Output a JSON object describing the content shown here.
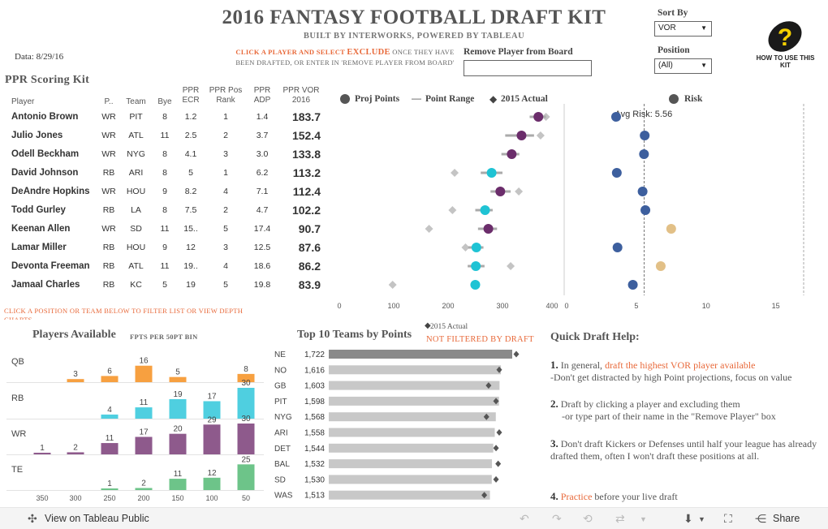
{
  "header": {
    "title": "2016 FANTASY FOOTBALL DRAFT KIT",
    "subtitle": "BUILT BY INTERWORKS, POWERED BY TABLEAU",
    "data_date": "Data:  8/29/16",
    "instruction_part1": "CLICK A PLAYER AND SELECT ",
    "instruction_exclude": "EXCLUDE",
    "instruction_part2": " ONCE THEY HAVE BEEN DRAFTED, OR ENTER IN 'REMOVE PLAYER FROM BOARD'",
    "remove_label": "Remove Player from Board",
    "remove_value": "",
    "sort_label": "Sort By",
    "sort_value": "VOR",
    "position_label": "Position",
    "position_value": "(All)",
    "help_label": "HOW TO USE THIS KIT"
  },
  "ppr": {
    "title": "PPR Scoring Kit",
    "columns": [
      "Player",
      "P..",
      "Team",
      "Bye",
      "PPR ECR",
      "PPR Pos Rank",
      "PPR ADP",
      "PPR VOR 2016"
    ],
    "rows": [
      {
        "player": "Antonio Brown",
        "pos": "WR",
        "team": "PIT",
        "bye": "8",
        "ecr": "1.2",
        "posrank": "1",
        "adp": "1.4",
        "vor": "183.7"
      },
      {
        "player": "Julio Jones",
        "pos": "WR",
        "team": "ATL",
        "bye": "11",
        "ecr": "2.5",
        "posrank": "2",
        "adp": "3.7",
        "vor": "152.4"
      },
      {
        "player": "Odell Beckham",
        "pos": "WR",
        "team": "NYG",
        "bye": "8",
        "ecr": "4.1",
        "posrank": "3",
        "adp": "3.0",
        "vor": "133.8"
      },
      {
        "player": "David Johnson",
        "pos": "RB",
        "team": "ARI",
        "bye": "8",
        "ecr": "5",
        "posrank": "1",
        "adp": "6.2",
        "vor": "113.2"
      },
      {
        "player": "DeAndre Hopkins",
        "pos": "WR",
        "team": "HOU",
        "bye": "9",
        "ecr": "8.2",
        "posrank": "4",
        "adp": "7.1",
        "vor": "112.4"
      },
      {
        "player": "Todd Gurley",
        "pos": "RB",
        "team": "LA",
        "bye": "8",
        "ecr": "7.5",
        "posrank": "2",
        "adp": "4.7",
        "vor": "102.2"
      },
      {
        "player": "Keenan Allen",
        "pos": "WR",
        "team": "SD",
        "bye": "11",
        "ecr": "15..",
        "posrank": "5",
        "adp": "17.4",
        "vor": "90.7"
      },
      {
        "player": "Lamar Miller",
        "pos": "RB",
        "team": "HOU",
        "bye": "9",
        "ecr": "12",
        "posrank": "3",
        "adp": "12.5",
        "vor": "87.6"
      },
      {
        "player": "Devonta Freeman",
        "pos": "RB",
        "team": "ATL",
        "bye": "11",
        "ecr": "19..",
        "posrank": "4",
        "adp": "18.6",
        "vor": "86.2"
      },
      {
        "player": "Jamaal Charles",
        "pos": "RB",
        "team": "KC",
        "bye": "5",
        "ecr": "19",
        "posrank": "5",
        "adp": "19.8",
        "vor": "83.9"
      }
    ]
  },
  "legend": {
    "proj": "Proj Points",
    "range": "Point Range",
    "actual": "2015 Actual",
    "risk": "Risk",
    "avg_risk": "Avg Risk: 5.56"
  },
  "chart_data": [
    {
      "type": "scatter",
      "name": "Projected Points",
      "xlim": [
        0,
        400
      ],
      "ticks": [
        "0",
        "100",
        "200",
        "300",
        "400"
      ],
      "categories": [
        "Antonio Brown",
        "Julio Jones",
        "Odell Beckham",
        "David Johnson",
        "DeAndre Hopkins",
        "Todd Gurley",
        "Keenan Allen",
        "Lamar Miller",
        "Devonta Freeman",
        "Jamaal Charles"
      ],
      "proj": [
        366,
        335,
        317,
        280,
        296,
        268,
        274,
        252,
        251,
        250
      ],
      "range_low": [
        350,
        305,
        298,
        260,
        278,
        250,
        255,
        237,
        236,
        241
      ],
      "range_high": [
        380,
        358,
        331,
        300,
        315,
        282,
        290,
        265,
        267,
        257
      ],
      "actual_2015": [
        380,
        370,
        0,
        212,
        330,
        208,
        165,
        232,
        315,
        98
      ],
      "pos": [
        "WR",
        "WR",
        "WR",
        "RB",
        "WR",
        "RB",
        "WR",
        "RB",
        "RB",
        "RB"
      ]
    },
    {
      "type": "scatter",
      "name": "Risk",
      "xlim": [
        0,
        17
      ],
      "ticks": [
        "0",
        "5",
        "10",
        "15"
      ],
      "avg": 5.56,
      "values": [
        3.55,
        5.6,
        5.55,
        3.6,
        5.45,
        5.65,
        7.5,
        3.65,
        6.75,
        4.75
      ],
      "colors": [
        "#3d5f9e",
        "#3d5f9e",
        "#3d5f9e",
        "#3d5f9e",
        "#3d5f9e",
        "#3d5f9e",
        "#e2c087",
        "#3d5f9e",
        "#e2c087",
        "#3d5f9e"
      ]
    },
    {
      "type": "bar",
      "name": "Players Available",
      "title": "Players Available",
      "subtitle": "FPTS PER 50PT BIN",
      "categories": [
        "350",
        "300",
        "250",
        "200",
        "150",
        "100",
        "50"
      ],
      "series": [
        {
          "name": "QB",
          "color": "#f7a040",
          "values": [
            0,
            3,
            6,
            16,
            5,
            0,
            8
          ]
        },
        {
          "name": "RB",
          "color": "#4fcfe0",
          "values": [
            0,
            0,
            4,
            11,
            19,
            17,
            30
          ]
        },
        {
          "name": "WR",
          "color": "#8e5a8c",
          "values": [
            1,
            2,
            11,
            17,
            20,
            29,
            30
          ]
        },
        {
          "name": "TE",
          "color": "#6dc489",
          "values": [
            0,
            0,
            1,
            2,
            11,
            12,
            25
          ]
        }
      ]
    },
    {
      "type": "bar",
      "name": "Top 10 Teams by Points",
      "title": "Top 10 Teams by Points",
      "legend": "2015 Actual",
      "note": "NOT FILTERED BY DRAFT",
      "categories": [
        "NE",
        "NO",
        "GB",
        "PIT",
        "NYG",
        "ARI",
        "DET",
        "BAL",
        "SD",
        "WAS"
      ],
      "value_labels": [
        "1,722",
        "1,616",
        "1,603",
        "1,598",
        "1,568",
        "1,558",
        "1,544",
        "1,532",
        "1,530",
        "1,513"
      ],
      "values": [
        1722,
        1616,
        1603,
        1598,
        1568,
        1558,
        1544,
        1532,
        1530,
        1513
      ],
      "actual_2015": [
        1760,
        1600,
        1500,
        1570,
        1480,
        1600,
        1570,
        1590,
        1570,
        1460
      ]
    }
  ],
  "filter_note": "CLICK A POSITION OR TEAM BELOW TO FILTER LIST OR VIEW DEPTH CHARTS",
  "quick_draft": {
    "title": "Quick Draft Help:",
    "items": [
      {
        "num": "1.",
        "lead": " In general, ",
        "hl": "draft the highest VOR player available",
        "rest": "-Don't get distracted by high Point projections, focus on value"
      },
      {
        "num": "2.",
        "lead": " Draft by clicking a player and excluding them",
        "hl": "",
        "rest": "-or type part of their name in the \"Remove Player\" box"
      },
      {
        "num": "3.",
        "lead": " Don't draft Kickers or Defenses until half your league has already drafted them, often I won't draft these positions at all.",
        "hl": "",
        "rest": ""
      },
      {
        "num": "4.",
        "lead": " ",
        "hl": "Practice",
        "rest": " before your live draft"
      }
    ]
  },
  "footer": {
    "view_label": "View on Tableau Public",
    "share_label": "Share"
  }
}
